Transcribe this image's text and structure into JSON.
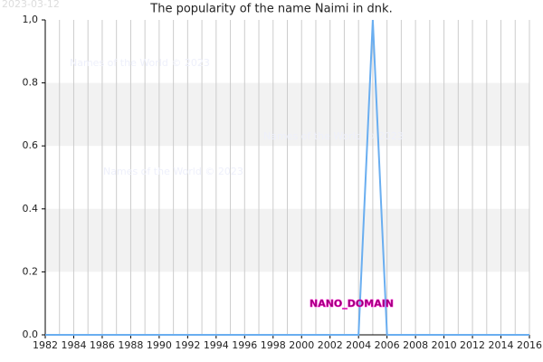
{
  "chart_data": {
    "type": "line",
    "title": "The popularity of the name Naimi in dnk.",
    "date_stamp": "2023-03-12",
    "watermarks": [
      "Names of the World © 2023",
      "Names of the World © 2023",
      "Names of the World © 2023"
    ],
    "domain_label": "NANO_DOMAIN",
    "x": [
      1982,
      1983,
      1984,
      1985,
      1986,
      1987,
      1988,
      1989,
      1990,
      1991,
      1992,
      1993,
      1994,
      1995,
      1996,
      1997,
      1998,
      1999,
      2000,
      2001,
      2002,
      2003,
      2004,
      2005,
      2006,
      2007,
      2008,
      2009,
      2010,
      2011,
      2012,
      2013,
      2014,
      2015,
      2016
    ],
    "series": [
      {
        "name": "Naimi",
        "color": "#6aaef0",
        "values": [
          0,
          0,
          0,
          0,
          0,
          0,
          0,
          0,
          0,
          0,
          0,
          0,
          0,
          0,
          0,
          0,
          0,
          0,
          0,
          0,
          0,
          0,
          0,
          1,
          0,
          0,
          0,
          0,
          0,
          0,
          0,
          0,
          0,
          0,
          0
        ]
      }
    ],
    "xlim": [
      1982,
      2016
    ],
    "xticks": [
      1982,
      1984,
      1986,
      1988,
      1990,
      1992,
      1994,
      1996,
      1998,
      2000,
      2002,
      2004,
      2006,
      2008,
      2010,
      2012,
      2014,
      2016
    ],
    "ylim": [
      0,
      1
    ],
    "yticks": [
      {
        "value": 0,
        "label": "0.0"
      },
      {
        "value": 0.2,
        "label": "0.2"
      },
      {
        "value": 0.4,
        "label": "0.4"
      },
      {
        "value": 0.6,
        "label": "0.6"
      },
      {
        "value": 0.8,
        "label": "0.8"
      },
      {
        "value": 1,
        "label": "1,0"
      }
    ],
    "grid": true
  }
}
